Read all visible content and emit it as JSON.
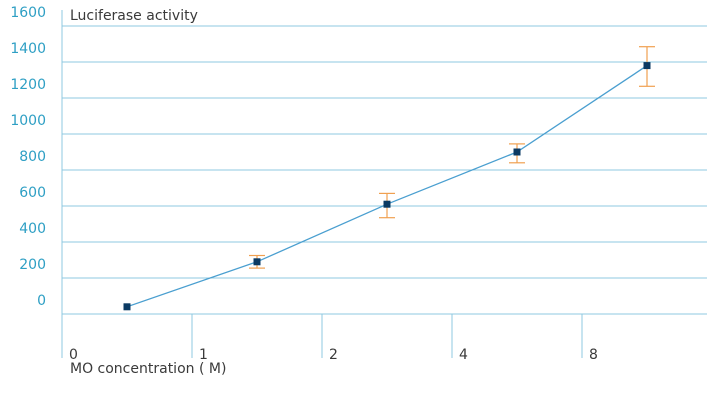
{
  "chart_data": {
    "type": "line",
    "title": "Luciferase activity",
    "xlabel": "MO concentration (  M)",
    "ylabel": "",
    "categories": [
      "0",
      "1",
      "2",
      "4",
      "8"
    ],
    "yticks": [
      0,
      200,
      400,
      600,
      800,
      1000,
      1200,
      1400,
      1600
    ],
    "ylim": [
      0,
      1600
    ],
    "grid": true,
    "series": [
      {
        "values": [
          40,
          290,
          610,
          900,
          1380
        ],
        "error_low": [
          null,
          255,
          535,
          840,
          1265
        ],
        "error_high": [
          null,
          325,
          670,
          945,
          1485
        ]
      }
    ],
    "colors": {
      "line": "#4a9fd0",
      "marker": "#0b3a63",
      "error": "#f0a050",
      "grid": "#8fc8e0",
      "ytick": "#2e9fc4"
    }
  }
}
